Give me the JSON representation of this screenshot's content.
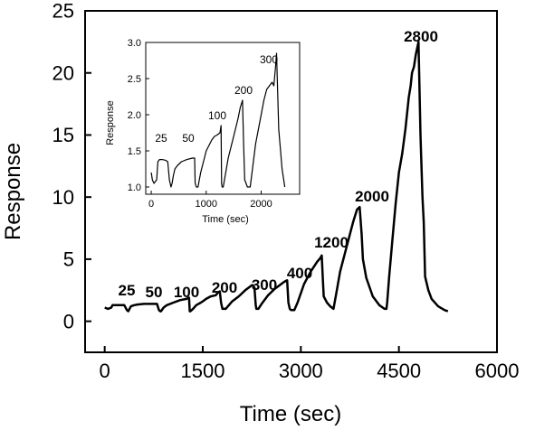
{
  "chart_data": [
    {
      "type": "line",
      "xlabel": "Time (sec)",
      "ylabel": "Response",
      "xlim": [
        -300,
        6000
      ],
      "ylim": [
        -2.5,
        25
      ],
      "xticks": [
        0,
        1500,
        3000,
        4500,
        6000
      ],
      "yticks": [
        0,
        5,
        10,
        15,
        20,
        25
      ],
      "grid": false,
      "series": [
        {
          "x": [
            0,
            50,
            100,
            120,
            140,
            200,
            260,
            300,
            340,
            360,
            400,
            450,
            500,
            600,
            700,
            750,
            800,
            830,
            850,
            860,
            900,
            950,
            1050,
            1150,
            1250,
            1290,
            1300,
            1310,
            1350,
            1400,
            1470,
            1500,
            1550,
            1620,
            1700,
            1730,
            1760,
            1780,
            1800,
            1850,
            1950,
            2050,
            2150,
            2200,
            2250,
            2270,
            2290,
            2310,
            2320,
            2350,
            2400,
            2500,
            2600,
            2700,
            2750,
            2790,
            2810,
            2830,
            2850,
            2900,
            2950,
            3050,
            3150,
            3250,
            3300,
            3320,
            3340,
            3350,
            3400,
            3450,
            3500,
            3550,
            3600,
            3700,
            3800,
            3860,
            3900,
            3930,
            3950,
            4000,
            4100,
            4200,
            4280,
            4310,
            4320,
            4350,
            4400,
            4450,
            4500,
            4550,
            4600,
            4650,
            4680,
            4700,
            4730,
            4760,
            4800,
            4830,
            4860,
            4880,
            4900,
            4950,
            5000,
            5100,
            5200,
            5250
          ],
          "y": [
            1.1,
            1.0,
            1.1,
            1.3,
            1.3,
            1.3,
            1.3,
            1.3,
            0.9,
            0.8,
            1.2,
            1.3,
            1.35,
            1.4,
            1.4,
            1.4,
            1.4,
            0.9,
            0.8,
            0.8,
            1.1,
            1.3,
            1.5,
            1.7,
            1.8,
            1.9,
            0.8,
            0.8,
            1.0,
            1.3,
            1.5,
            1.6,
            1.8,
            2.0,
            2.1,
            2.3,
            2.4,
            1.5,
            1.0,
            1.0,
            1.6,
            2.0,
            2.5,
            2.7,
            2.9,
            2.9,
            2.7,
            1.3,
            1.0,
            1.0,
            1.4,
            2.1,
            2.6,
            3.0,
            3.2,
            3.3,
            1.5,
            1.0,
            0.9,
            0.9,
            1.5,
            3.0,
            4.0,
            4.8,
            5.1,
            5.3,
            3.0,
            2.0,
            1.5,
            1.2,
            1.0,
            2.5,
            4.0,
            6.0,
            8.0,
            9.0,
            9.2,
            7.0,
            5.0,
            3.5,
            2.0,
            1.3,
            1.0,
            1.0,
            1.5,
            3.5,
            6.5,
            9.5,
            12.0,
            13.5,
            15.5,
            18.0,
            19.0,
            20.0,
            20.5,
            21.5,
            22.5,
            15.0,
            10.0,
            8.0,
            3.6,
            2.5,
            1.8,
            1.2,
            0.9,
            0.8
          ]
        }
      ],
      "annotations": [
        "25",
        "50",
        "100",
        "200",
        "300",
        "400",
        "1200",
        "2000",
        "2800"
      ]
    },
    {
      "type": "line",
      "xlabel": "Time (sec)",
      "ylabel": "Response",
      "xlim": [
        -100,
        2700
      ],
      "ylim": [
        0.9,
        3.0
      ],
      "xticks": [
        0,
        1000,
        2000
      ],
      "yticks": [
        1.0,
        1.5,
        2.0,
        2.5,
        3.0
      ],
      "grid": false,
      "series": [
        {
          "x": [
            0,
            20,
            50,
            100,
            120,
            150,
            200,
            260,
            300,
            330,
            360,
            380,
            400,
            430,
            480,
            550,
            650,
            750,
            790,
            800,
            820,
            850,
            900,
            1000,
            1100,
            1150,
            1200,
            1250,
            1270,
            1280,
            1290,
            1310,
            1400,
            1500,
            1580,
            1620,
            1660,
            1680,
            1700,
            1750,
            1800,
            1900,
            2000,
            2050,
            2100,
            2150,
            2200,
            2230,
            2260,
            2280,
            2320,
            2380,
            2430
          ],
          "y": [
            1.2,
            1.1,
            1.05,
            1.1,
            1.35,
            1.38,
            1.38,
            1.37,
            1.35,
            1.1,
            1.0,
            1.05,
            1.15,
            1.25,
            1.3,
            1.35,
            1.38,
            1.4,
            1.4,
            1.05,
            1.0,
            1.0,
            1.2,
            1.5,
            1.65,
            1.7,
            1.72,
            1.75,
            1.85,
            1.05,
            1.0,
            1.0,
            1.4,
            1.7,
            1.95,
            2.1,
            2.2,
            1.6,
            1.1,
            1.0,
            1.0,
            1.6,
            2.0,
            2.2,
            2.35,
            2.4,
            2.45,
            2.4,
            2.65,
            2.85,
            1.8,
            1.25,
            1.0
          ]
        }
      ],
      "annotations": [
        "25",
        "50",
        "100",
        "200",
        "300"
      ]
    }
  ]
}
